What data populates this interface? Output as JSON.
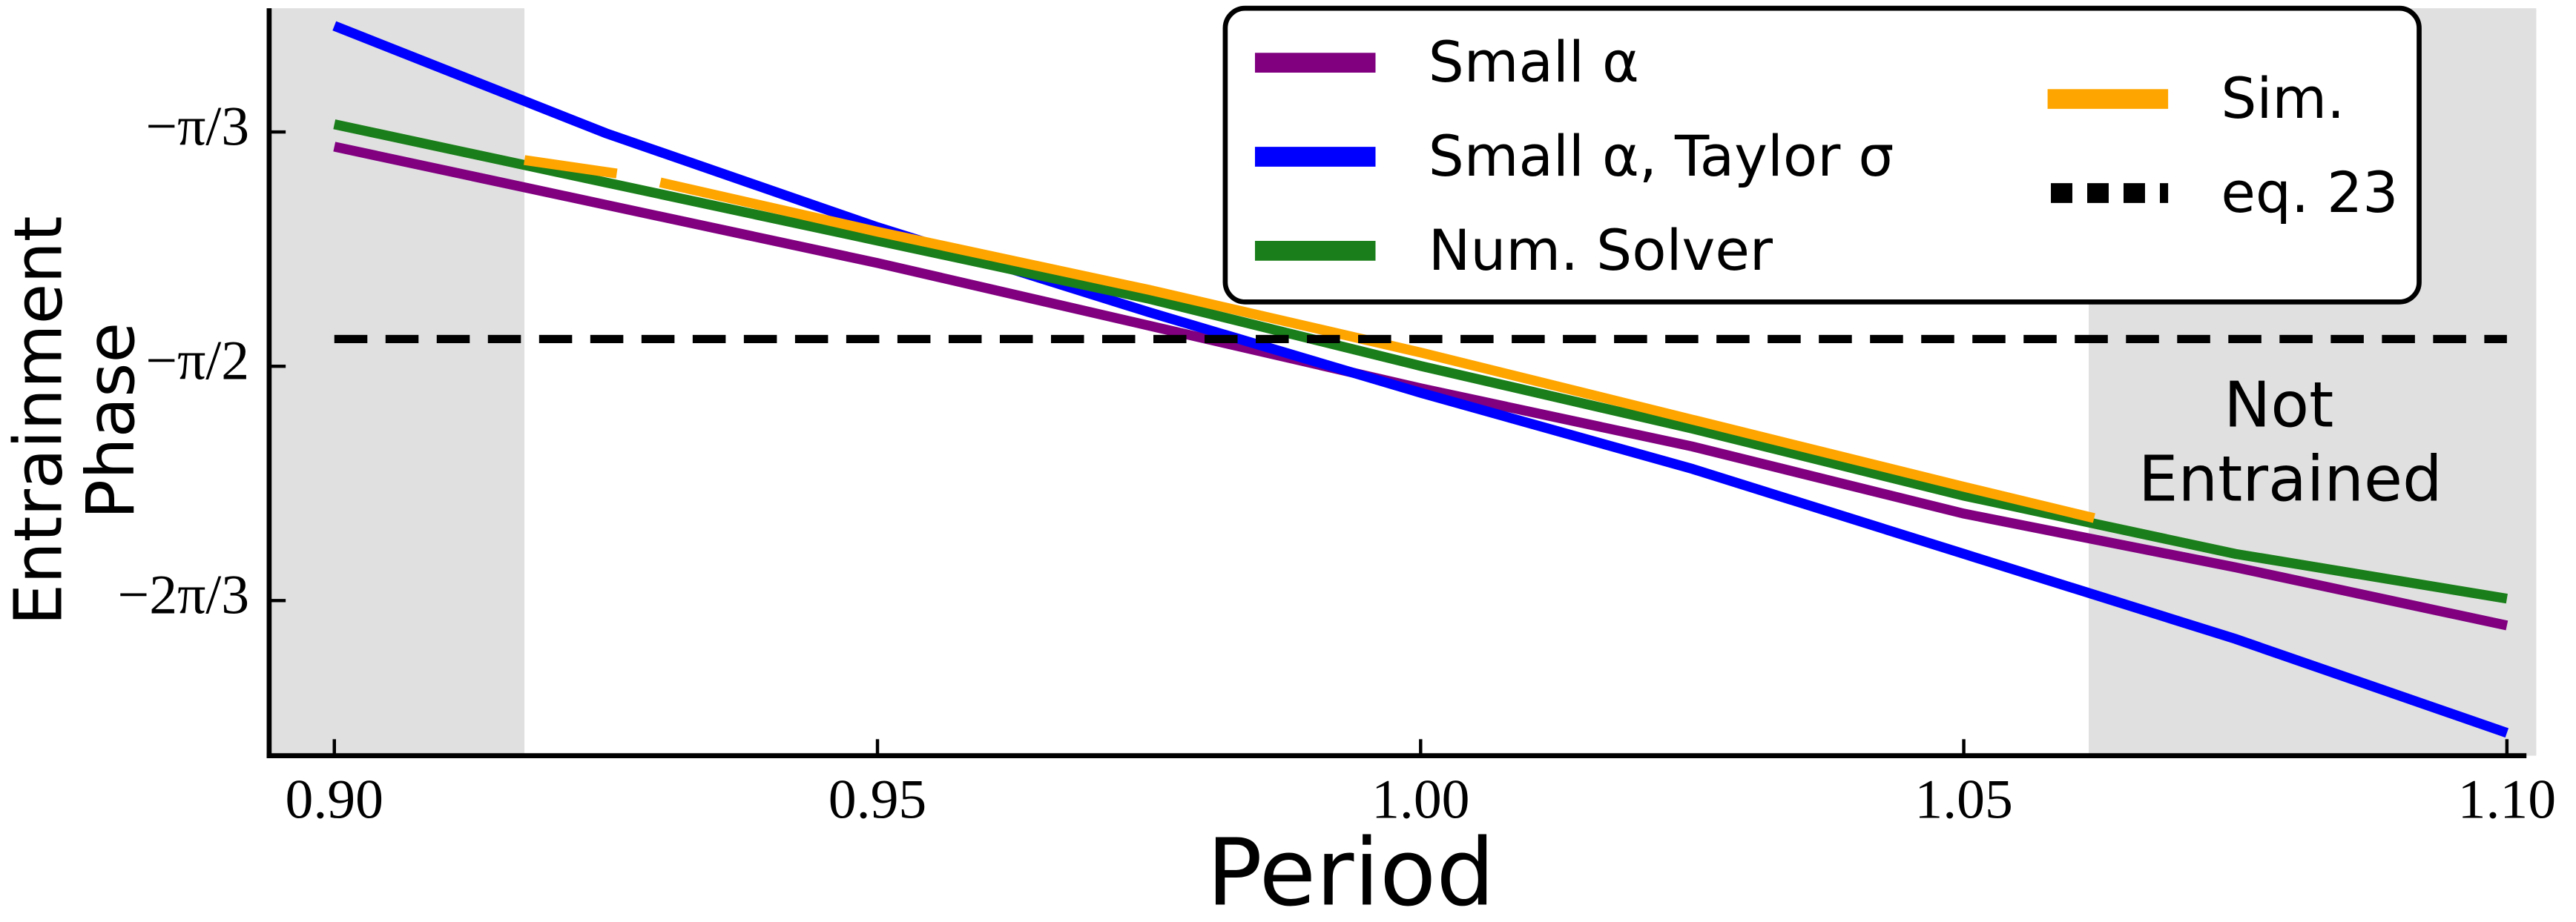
{
  "chart_data": {
    "type": "line",
    "xlabel": "Period",
    "ylabel": [
      "Entrainment",
      "Phase"
    ],
    "xlim": [
      0.894,
      1.1018
    ],
    "ylim": [
      -2.441,
      -0.7707
    ],
    "xticks": [
      {
        "value": 0.9,
        "label": "0.90"
      },
      {
        "value": 0.95,
        "label": "0.95"
      },
      {
        "value": 1.0,
        "label": "1.00"
      },
      {
        "value": 1.05,
        "label": "1.05"
      },
      {
        "value": 1.1,
        "label": "1.10"
      }
    ],
    "yticks": [
      {
        "value": -1.0472,
        "label": "−π/3"
      },
      {
        "value": -1.5708,
        "label": "−π/2"
      },
      {
        "value": -2.0944,
        "label": "−2π/3"
      }
    ],
    "shaded_regions": [
      [
        0.894,
        0.9175
      ],
      [
        1.0615,
        1.1027
      ]
    ],
    "shade_color": "#e0e0e0",
    "annotation": [
      "Not",
      "Entrained"
    ],
    "legend": "upper right",
    "series": [
      {
        "name": "Small α",
        "color": "#800080",
        "dash": "solid",
        "x": [
          0.9,
          0.925,
          0.95,
          0.975,
          1.0,
          1.025,
          1.05,
          1.075,
          1.1
        ],
        "values": [
          -1.08,
          -1.21,
          -1.34,
          -1.48,
          -1.62,
          -1.75,
          -1.9,
          -2.02,
          -2.15
        ]
      },
      {
        "name": "Small α, Taylor σ",
        "color": "#0000ff",
        "dash": "solid",
        "x": [
          0.9,
          0.925,
          0.95,
          0.975,
          1.0,
          1.025,
          1.05,
          1.075,
          1.1
        ],
        "values": [
          -0.81,
          -1.05,
          -1.26,
          -1.45,
          -1.63,
          -1.8,
          -1.99,
          -2.18,
          -2.39
        ]
      },
      {
        "name": "Num. Solver",
        "color": "#1a7f1a",
        "dash": "solid",
        "x": [
          0.9,
          0.925,
          0.95,
          0.975,
          1.0,
          1.025,
          1.05,
          1.075,
          1.1
        ],
        "values": [
          -1.03,
          -1.16,
          -1.29,
          -1.42,
          -1.57,
          -1.71,
          -1.86,
          -1.99,
          -2.09
        ]
      },
      {
        "name": "Sim.",
        "color": "#ffa500",
        "dash": "solid",
        "x": [
          0.9175,
          0.926,
          0.928,
          0.93,
          0.95,
          0.975,
          1.0,
          1.025,
          1.05,
          1.062
        ],
        "values": [
          -1.11,
          -1.14,
          null,
          -1.16,
          -1.27,
          -1.4,
          -1.54,
          -1.69,
          -1.84,
          -1.91
        ]
      },
      {
        "name": "eq. 23",
        "color": "#000000",
        "dash": "dashed",
        "x": [
          0.9,
          1.1
        ],
        "values": [
          -1.51,
          -1.51
        ]
      }
    ]
  }
}
